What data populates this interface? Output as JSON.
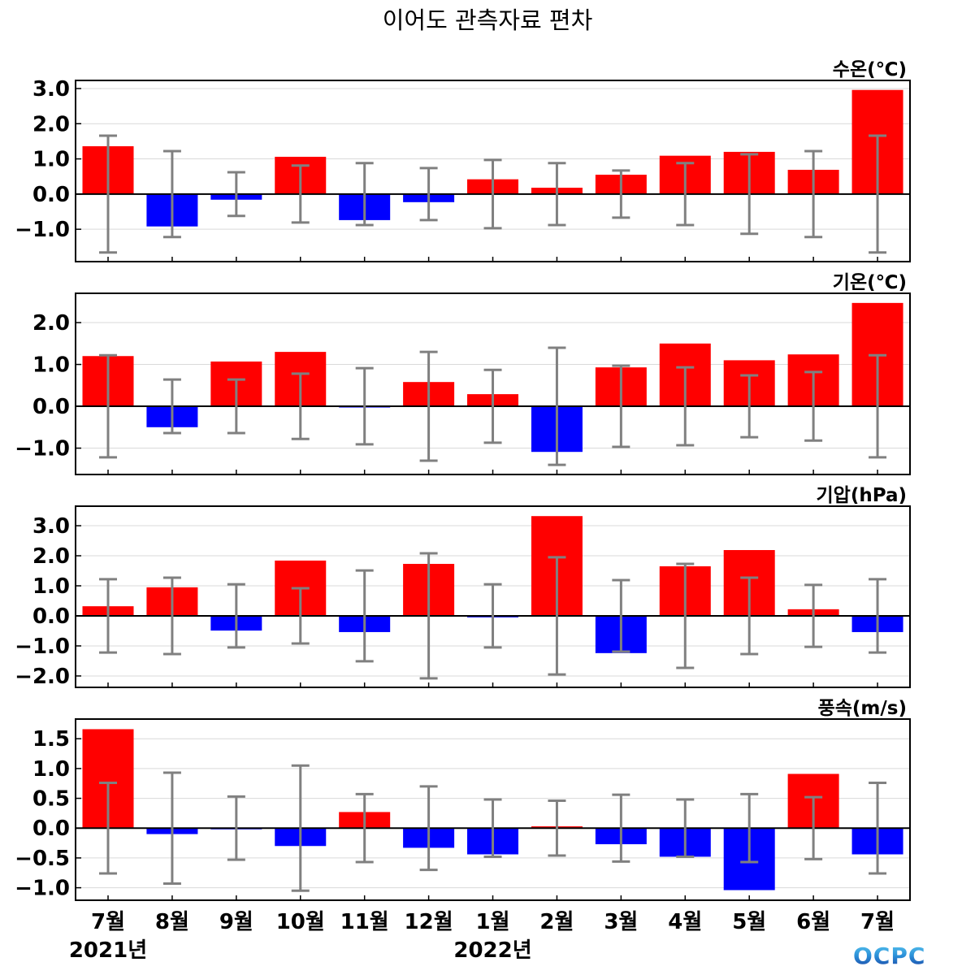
{
  "title": "이어도 관측자료 편차",
  "logo_text": "OCPC",
  "colors": {
    "positive": "#ff0000",
    "negative": "#0000ff",
    "errorbar": "#808080",
    "grid": "#d9d9d9"
  },
  "chart_data": [
    {
      "type": "bar",
      "label": "수온(℃)",
      "categories": [
        "7월",
        "8월",
        "9월",
        "10월",
        "11월",
        "12월",
        "1월",
        "2월",
        "3월",
        "4월",
        "5월",
        "6월",
        "7월"
      ],
      "year_labels": [
        {
          "index": 0,
          "text": "2021년"
        },
        {
          "index": 6,
          "text": "2022년"
        }
      ],
      "values": [
        1.36,
        -0.92,
        -0.16,
        1.06,
        -0.74,
        -0.23,
        0.42,
        0.18,
        0.55,
        1.09,
        1.2,
        0.69,
        2.96
      ],
      "error": [
        1.66,
        1.22,
        0.62,
        0.81,
        0.88,
        0.74,
        0.97,
        0.88,
        0.67,
        0.88,
        1.13,
        1.22,
        1.66
      ],
      "ylim": [
        -1.92,
        3.23
      ],
      "yticks": [
        {
          "v": 3,
          "t": "3.0"
        },
        {
          "v": 2,
          "t": "2.0"
        },
        {
          "v": 1,
          "t": "1.0"
        },
        {
          "v": 0,
          "t": "0.0"
        },
        {
          "v": -1,
          "t": "−1.0"
        }
      ],
      "grid": true
    },
    {
      "type": "bar",
      "label": "기온(℃)",
      "values": [
        1.2,
        -0.5,
        1.07,
        1.3,
        -0.02,
        0.58,
        0.29,
        -1.09,
        0.93,
        1.5,
        1.1,
        1.24,
        2.47
      ],
      "error": [
        1.22,
        0.64,
        0.64,
        0.78,
        0.91,
        1.3,
        0.87,
        1.4,
        0.97,
        0.93,
        0.74,
        0.82,
        1.22
      ],
      "ylim": [
        -1.63,
        2.7
      ],
      "yticks": [
        {
          "v": 2,
          "t": "2.0"
        },
        {
          "v": 1,
          "t": "1.0"
        },
        {
          "v": 0,
          "t": "0.0"
        },
        {
          "v": -1,
          "t": "−1.0"
        }
      ],
      "grid": true
    },
    {
      "type": "bar",
      "label": "기압(hPa)",
      "values": [
        0.32,
        0.95,
        -0.49,
        1.84,
        -0.54,
        1.73,
        -0.05,
        3.32,
        -1.24,
        1.65,
        2.19,
        0.22,
        -0.54
      ],
      "error": [
        1.22,
        1.27,
        1.05,
        0.92,
        1.51,
        2.08,
        1.05,
        1.95,
        1.19,
        1.73,
        1.27,
        1.03,
        1.22
      ],
      "ylim": [
        -2.38,
        3.65
      ],
      "yticks": [
        {
          "v": 3,
          "t": "3.0"
        },
        {
          "v": 2,
          "t": "2.0"
        },
        {
          "v": 1,
          "t": "1.0"
        },
        {
          "v": 0,
          "t": "0.0"
        },
        {
          "v": -1,
          "t": "−1.0"
        },
        {
          "v": -2,
          "t": "−2.0"
        }
      ],
      "grid": true
    },
    {
      "type": "bar",
      "label": "풍속(m/s)",
      "values": [
        1.66,
        -0.1,
        -0.02,
        -0.3,
        0.27,
        -0.33,
        -0.44,
        0.03,
        -0.27,
        -0.48,
        -1.04,
        0.91,
        -0.44
      ],
      "error": [
        0.76,
        0.93,
        0.53,
        1.05,
        0.57,
        0.7,
        0.48,
        0.46,
        0.56,
        0.48,
        0.57,
        0.52,
        0.76
      ],
      "ylim": [
        -1.21,
        1.83
      ],
      "yticks": [
        {
          "v": 1.5,
          "t": "1.5"
        },
        {
          "v": 1,
          "t": "1.0"
        },
        {
          "v": 0.5,
          "t": "0.5"
        },
        {
          "v": 0,
          "t": "0.0"
        },
        {
          "v": -0.5,
          "t": "−0.5"
        },
        {
          "v": -1,
          "t": "−1.0"
        }
      ],
      "grid": true
    }
  ]
}
